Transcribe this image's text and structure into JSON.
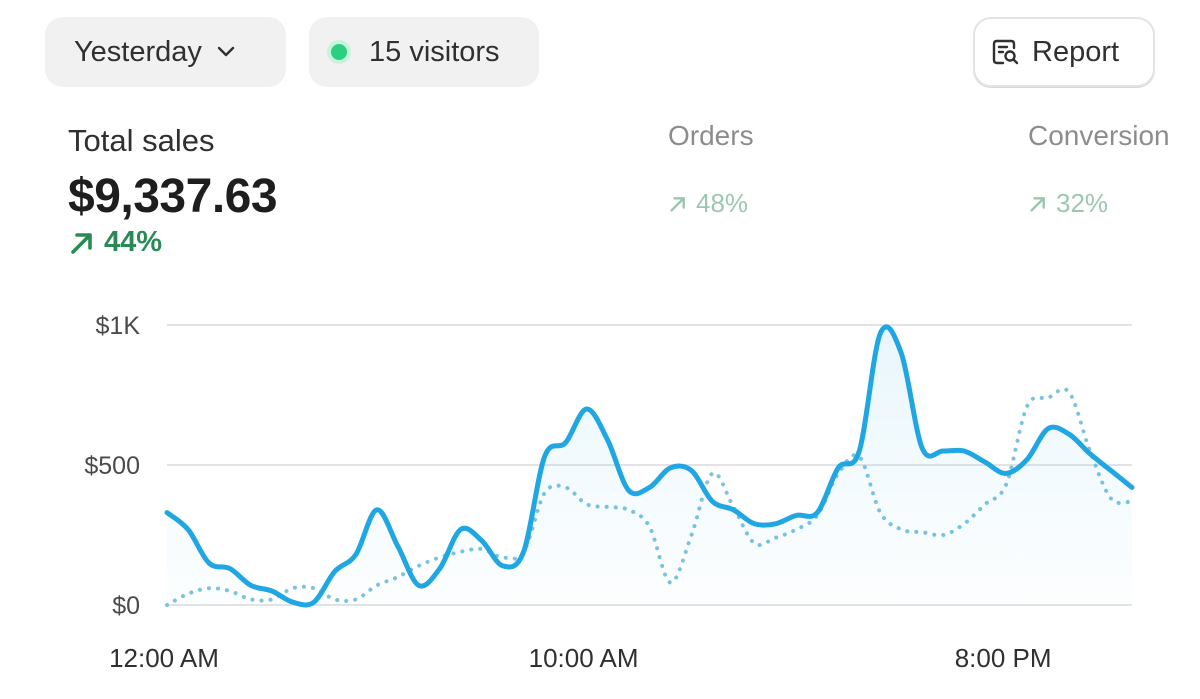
{
  "filters": {
    "date_label": "Yesterday",
    "visitors_label": "15 visitors"
  },
  "actions": {
    "report_label": "Report"
  },
  "metrics": {
    "total_sales": {
      "label": "Total sales",
      "value": "$9,337.63",
      "change": "44%"
    },
    "orders": {
      "label": "Orders",
      "value": "",
      "change": "48%"
    },
    "conversion": {
      "label": "Conversion",
      "value": "",
      "change": "32%"
    }
  },
  "colors": {
    "primary_line": "#20a6e2",
    "comparison_line": "#7cc3df",
    "positive": "#2a8a55",
    "live_dot": "#29d07e"
  },
  "chart_data": {
    "type": "line",
    "x_axis": {
      "range_hours": [
        0,
        23
      ],
      "tick_hours": [
        0,
        10,
        20
      ],
      "tick_labels": [
        "12:00 AM",
        "10:00 AM",
        "8:00 PM"
      ]
    },
    "y_axis": {
      "ylim": [
        0,
        1000
      ],
      "ticks": [
        0,
        500,
        1000
      ],
      "tick_labels": [
        "$0",
        "$500",
        "$1K"
      ]
    },
    "grid": true,
    "series": [
      {
        "role": "current",
        "style": "solid",
        "fill": true,
        "points": [
          [
            0,
            330
          ],
          [
            0.5,
            270
          ],
          [
            1,
            150
          ],
          [
            1.5,
            130
          ],
          [
            2,
            70
          ],
          [
            2.5,
            50
          ],
          [
            3,
            10
          ],
          [
            3.5,
            10
          ],
          [
            4,
            120
          ],
          [
            4.5,
            180
          ],
          [
            5,
            340
          ],
          [
            5.5,
            210
          ],
          [
            6,
            70
          ],
          [
            6.5,
            130
          ],
          [
            7,
            270
          ],
          [
            7.5,
            230
          ],
          [
            8,
            140
          ],
          [
            8.5,
            190
          ],
          [
            9,
            530
          ],
          [
            9.5,
            580
          ],
          [
            10,
            700
          ],
          [
            10.5,
            590
          ],
          [
            11,
            410
          ],
          [
            11.5,
            420
          ],
          [
            12,
            490
          ],
          [
            12.5,
            480
          ],
          [
            13,
            370
          ],
          [
            13.5,
            340
          ],
          [
            14,
            290
          ],
          [
            14.5,
            290
          ],
          [
            15,
            320
          ],
          [
            15.5,
            330
          ],
          [
            16,
            490
          ],
          [
            16.5,
            550
          ],
          [
            17,
            970
          ],
          [
            17.5,
            900
          ],
          [
            18,
            560
          ],
          [
            18.5,
            550
          ],
          [
            19,
            550
          ],
          [
            19.5,
            510
          ],
          [
            20,
            470
          ],
          [
            20.5,
            520
          ],
          [
            21,
            630
          ],
          [
            21.5,
            610
          ],
          [
            22,
            540
          ],
          [
            22.5,
            480
          ],
          [
            23,
            420
          ]
        ]
      },
      {
        "role": "comparison",
        "style": "dotted",
        "fill": false,
        "points": [
          [
            0,
            0
          ],
          [
            0.5,
            40
          ],
          [
            1,
            60
          ],
          [
            1.5,
            50
          ],
          [
            2,
            20
          ],
          [
            2.5,
            20
          ],
          [
            3,
            60
          ],
          [
            3.5,
            60
          ],
          [
            4,
            20
          ],
          [
            4.5,
            20
          ],
          [
            5,
            70
          ],
          [
            5.5,
            100
          ],
          [
            6,
            140
          ],
          [
            6.5,
            170
          ],
          [
            7,
            190
          ],
          [
            7.5,
            200
          ],
          [
            8,
            170
          ],
          [
            8.5,
            190
          ],
          [
            9,
            400
          ],
          [
            9.5,
            420
          ],
          [
            10,
            360
          ],
          [
            10.5,
            350
          ],
          [
            11,
            340
          ],
          [
            11.5,
            280
          ],
          [
            12,
            80
          ],
          [
            12.5,
            250
          ],
          [
            13,
            470
          ],
          [
            13.5,
            350
          ],
          [
            14,
            220
          ],
          [
            14.5,
            240
          ],
          [
            15,
            270
          ],
          [
            15.5,
            320
          ],
          [
            16,
            470
          ],
          [
            16.5,
            530
          ],
          [
            17,
            330
          ],
          [
            17.5,
            270
          ],
          [
            18,
            260
          ],
          [
            18.5,
            250
          ],
          [
            19,
            290
          ],
          [
            19.5,
            360
          ],
          [
            20,
            430
          ],
          [
            20.5,
            710
          ],
          [
            21,
            740
          ],
          [
            21.5,
            760
          ],
          [
            22,
            550
          ],
          [
            22.5,
            380
          ],
          [
            23,
            370
          ]
        ]
      }
    ]
  }
}
